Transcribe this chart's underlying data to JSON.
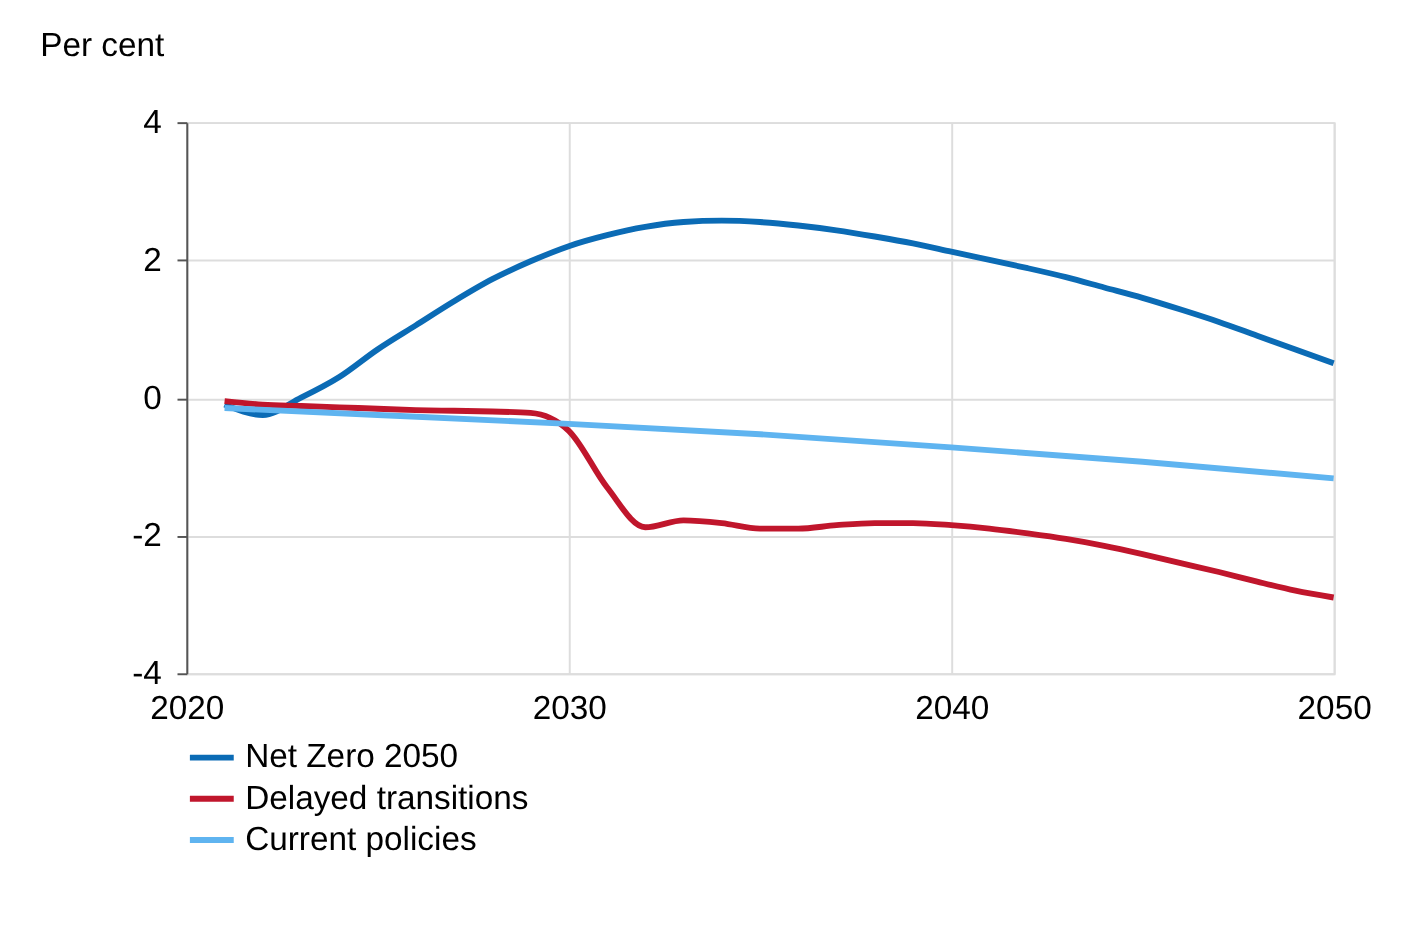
{
  "chart_data": {
    "type": "line",
    "ylabel": "Per cent",
    "xlim": [
      2020,
      2050
    ],
    "xticks": [
      2020,
      2030,
      2040,
      2050
    ],
    "ylim": [
      -4,
      4
    ],
    "yticks": [
      -4,
      -2,
      0,
      2,
      4
    ],
    "grid": true,
    "legend": "bottom",
    "line_style": "solid",
    "marker": "none",
    "series": [
      {
        "name": "Net Zero 2050",
        "color": "#0b6bb5",
        "x": [
          2021,
          2022,
          2023,
          2024,
          2025,
          2026,
          2027,
          2028,
          2029,
          2030,
          2031,
          2032,
          2033,
          2034,
          2035,
          2036,
          2037,
          2038,
          2039,
          2040,
          2041,
          2042,
          2043,
          2044,
          2045,
          2046,
          2047,
          2048,
          2049,
          2050
        ],
        "values": [
          -0.1,
          -0.25,
          0.0,
          0.3,
          0.7,
          1.05,
          1.4,
          1.72,
          1.98,
          2.2,
          2.36,
          2.48,
          2.55,
          2.57,
          2.55,
          2.5,
          2.43,
          2.34,
          2.24,
          2.12,
          2.0,
          1.88,
          1.75,
          1.6,
          1.45,
          1.28,
          1.1,
          0.9,
          0.7,
          0.5
        ]
      },
      {
        "name": "Delayed transitions",
        "color": "#c0162c",
        "x": [
          2021,
          2022,
          2023,
          2024,
          2025,
          2026,
          2027,
          2028,
          2029,
          2030,
          2031,
          2032,
          2033,
          2034,
          2035,
          2036,
          2037,
          2038,
          2039,
          2040,
          2041,
          2042,
          2043,
          2044,
          2045,
          2046,
          2047,
          2048,
          2049,
          2050
        ],
        "values": [
          -0.05,
          -0.1,
          -0.12,
          -0.14,
          -0.16,
          -0.18,
          -0.19,
          -0.2,
          -0.22,
          -0.48,
          -1.3,
          -1.88,
          -1.78,
          -1.82,
          -1.9,
          -1.9,
          -1.85,
          -1.82,
          -1.82,
          -1.85,
          -1.9,
          -1.97,
          -2.05,
          -2.15,
          -2.27,
          -2.4,
          -2.53,
          -2.67,
          -2.8,
          -2.9
        ]
      },
      {
        "name": "Current policies",
        "color": "#5fb4f0",
        "x": [
          2021,
          2025,
          2030,
          2035,
          2040,
          2045,
          2050
        ],
        "values": [
          -0.15,
          -0.25,
          -0.38,
          -0.53,
          -0.72,
          -0.93,
          -1.17
        ]
      }
    ]
  }
}
